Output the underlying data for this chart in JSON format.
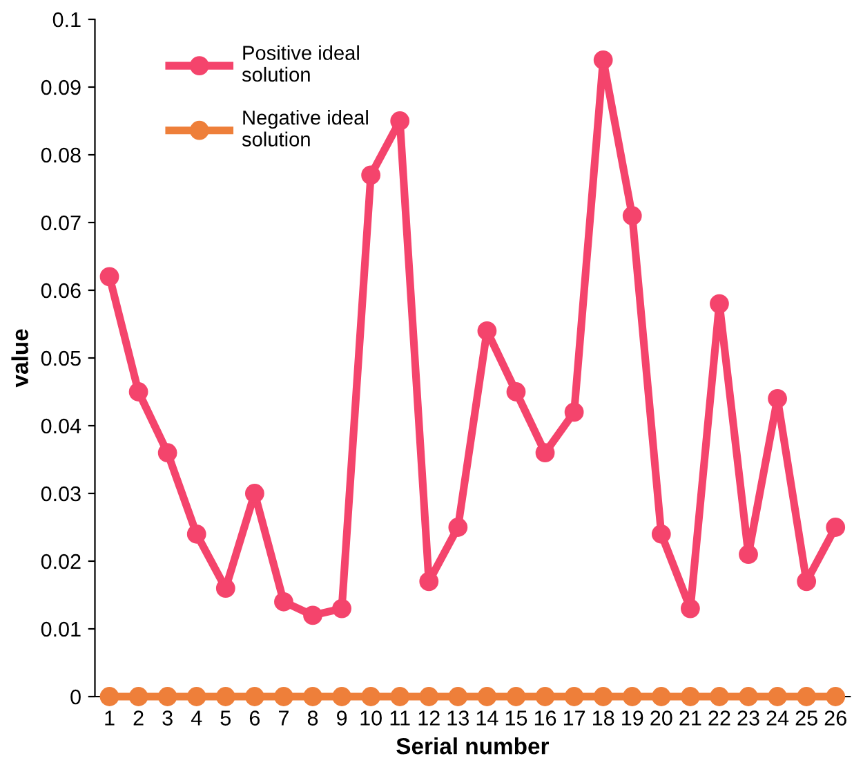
{
  "chart_data": {
    "type": "line",
    "xlabel": "Serial number",
    "ylabel": "value",
    "categories": [
      "1",
      "2",
      "3",
      "4",
      "5",
      "6",
      "7",
      "8",
      "9",
      "10",
      "11",
      "12",
      "13",
      "14",
      "15",
      "16",
      "17",
      "18",
      "19",
      "20",
      "21",
      "22",
      "23",
      "24",
      "25",
      "26"
    ],
    "series": [
      {
        "name": "Positive ideal solution",
        "color": "#f4446c",
        "values": [
          0.062,
          0.045,
          0.036,
          0.024,
          0.016,
          0.03,
          0.014,
          0.012,
          0.013,
          0.077,
          0.085,
          0.017,
          0.025,
          0.054,
          0.045,
          0.036,
          0.042,
          0.094,
          0.071,
          0.024,
          0.013,
          0.058,
          0.021,
          0.044,
          0.017,
          0.025
        ]
      },
      {
        "name": "Negative ideal solution",
        "color": "#ee7f3a",
        "values": [
          0,
          0,
          0,
          0,
          0,
          0,
          0,
          0,
          0,
          0,
          0,
          0,
          0,
          0,
          0,
          0,
          0,
          0,
          0,
          0,
          0,
          0,
          0,
          0,
          0,
          0
        ]
      }
    ],
    "ylim": [
      0,
      0.1
    ],
    "yticks": [
      0,
      0.01,
      0.02,
      0.03,
      0.04,
      0.05,
      0.06,
      0.07,
      0.08,
      0.09,
      0.1
    ],
    "grid": false,
    "legend": "top left",
    "marker": "circle",
    "line_style": "solid"
  }
}
